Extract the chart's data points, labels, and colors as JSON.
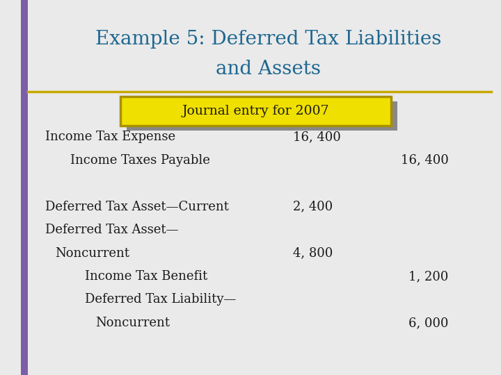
{
  "title_line1": "Example 5: Deferred Tax Liabilities",
  "title_line2": "and Assets",
  "title_color": "#1F6891",
  "background_color": "#EAEAEA",
  "left_bar_color": "#7B5EA7",
  "separator_color": "#C8A800",
  "header_box_text": "Journal entry for 2007",
  "header_box_bg": "#F0E000",
  "header_box_border": "#A89000",
  "header_text_color": "#1A1A1A",
  "body_text_color": "#1A1A1A",
  "rows": [
    {
      "label": "Income Tax Expense",
      "indent": 0.09,
      "debit": "16, 400",
      "credit": ""
    },
    {
      "label": "Income Taxes Payable",
      "indent": 0.14,
      "debit": "",
      "credit": "16, 400"
    },
    {
      "label": "",
      "indent": 0.09,
      "debit": "",
      "credit": ""
    },
    {
      "label": "Deferred Tax Asset—Current",
      "indent": 0.09,
      "debit": "2, 400",
      "credit": ""
    },
    {
      "label": "Deferred Tax Asset—",
      "indent": 0.09,
      "debit": "",
      "credit": ""
    },
    {
      "label": "Noncurrent",
      "indent": 0.11,
      "debit": "4, 800",
      "credit": ""
    },
    {
      "label": "Income Tax Benefit",
      "indent": 0.17,
      "debit": "",
      "credit": "1, 200"
    },
    {
      "label": "Deferred Tax Liability—",
      "indent": 0.17,
      "debit": "",
      "credit": ""
    },
    {
      "label": "Noncurrent",
      "indent": 0.19,
      "debit": "",
      "credit": "6, 000"
    }
  ]
}
